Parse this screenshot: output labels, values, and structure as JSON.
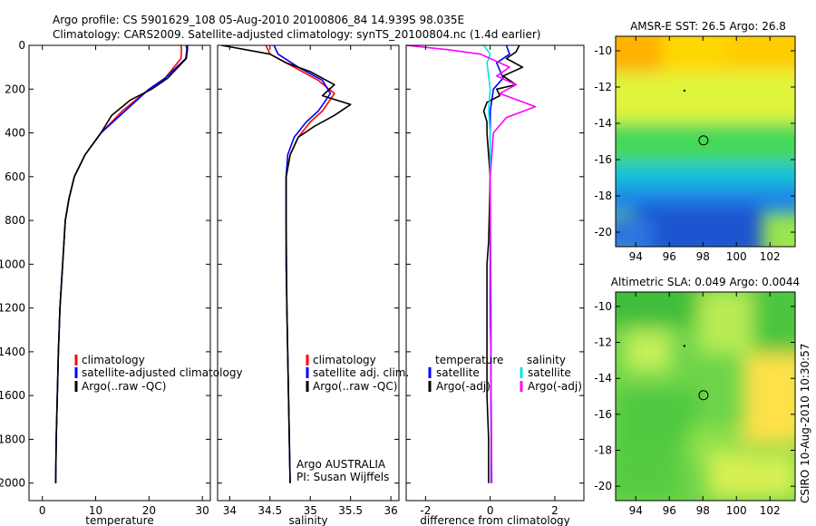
{
  "header": {
    "title_line1": "Argo profile: CS 5901629_108 05-Aug-2010 20100806_84 14.939S 98.035E",
    "title_line2": "Climatology: CARS2009. Satellite-adjusted climatology: synTS_20100804.nc (1.4d earlier)"
  },
  "colors": {
    "climatology": "#ff0000",
    "satellite": "#0000ff",
    "argo": "#000000",
    "sat_sal": "#00e5e5",
    "argo_sal": "#ff00ff"
  },
  "chart_data": [
    {
      "type": "line",
      "name": "temperature-profile",
      "xlabel": "temperature",
      "xticks": [
        0,
        10,
        20,
        30
      ],
      "yticks": [
        0,
        200,
        400,
        600,
        800,
        1000,
        1200,
        1400,
        1600,
        1800,
        2000
      ],
      "xlim": [
        -2.5,
        31.5
      ],
      "ylim": [
        2080,
        0
      ],
      "legend": [
        "climatology",
        "satellite-adjusted climatology",
        "Argo(..raw -QC)"
      ],
      "series": [
        {
          "name": "climatology",
          "color": "#ff0000",
          "x": [
            26,
            26.1,
            26,
            23,
            20,
            15,
            11,
            8,
            6,
            5,
            4.3,
            3.8,
            3.3,
            3,
            2.8,
            2.6,
            2.5
          ],
          "y": [
            0,
            20,
            60,
            150,
            200,
            300,
            400,
            500,
            600,
            700,
            800,
            1000,
            1200,
            1400,
            1600,
            1800,
            2000
          ]
        },
        {
          "name": "satellite-adjusted climatology",
          "color": "#0000ff",
          "x": [
            27,
            27.1,
            26.9,
            23,
            20,
            15.5,
            11,
            8,
            6,
            5,
            4.3,
            3.8,
            3.3,
            3,
            2.8,
            2.6,
            2.5
          ],
          "y": [
            0,
            20,
            60,
            150,
            200,
            300,
            400,
            500,
            600,
            700,
            800,
            1000,
            1200,
            1400,
            1600,
            1800,
            2000
          ]
        },
        {
          "name": "Argo(..raw -QC)",
          "color": "#000000",
          "x": [
            27.2,
            27.2,
            27,
            23.5,
            20.5,
            16.5,
            15,
            13,
            11,
            8,
            6,
            5,
            4.3,
            3.8,
            3.3,
            3,
            2.8,
            2.6,
            2.5
          ],
          "y": [
            0,
            20,
            60,
            150,
            200,
            250,
            280,
            320,
            400,
            500,
            600,
            700,
            800,
            1000,
            1200,
            1400,
            1600,
            1800,
            2000
          ]
        }
      ]
    },
    {
      "type": "line",
      "name": "salinity-profile",
      "xlabel": "salinity",
      "xticks": [
        34,
        34.5,
        35,
        35.5,
        36
      ],
      "xlim": [
        33.85,
        36.1
      ],
      "ylim": [
        2080,
        0
      ],
      "legend": [
        "climatology",
        "satellite adj. clim.",
        "Argo(..raw -QC)"
      ],
      "annotations": [
        "Argo AUSTRALIA",
        "PI: Susan Wijffels"
      ],
      "series": [
        {
          "name": "climatology",
          "color": "#ff0000",
          "x": [
            34.45,
            34.5,
            34.8,
            35.1,
            35.3,
            35.15,
            35,
            34.85,
            34.75,
            34.7,
            34.7,
            34.7,
            34.71,
            34.72,
            34.73,
            34.74,
            34.75
          ],
          "y": [
            0,
            40,
            100,
            160,
            220,
            300,
            350,
            420,
            500,
            600,
            800,
            1000,
            1200,
            1400,
            1600,
            1800,
            2000
          ]
        },
        {
          "name": "satellite adj. clim.",
          "color": "#0000ff",
          "x": [
            34.55,
            34.6,
            34.85,
            35.15,
            35.25,
            35.1,
            34.95,
            34.8,
            34.72,
            34.7,
            34.7,
            34.7,
            34.71,
            34.72,
            34.73,
            34.74,
            34.75
          ],
          "y": [
            0,
            40,
            100,
            160,
            220,
            300,
            350,
            420,
            500,
            600,
            800,
            1000,
            1200,
            1400,
            1600,
            1800,
            2000
          ]
        },
        {
          "name": "Argo(..raw -QC)",
          "color": "#000000",
          "x": [
            33.9,
            34.2,
            34.5,
            34.7,
            35,
            35.3,
            35.15,
            35.5,
            35.3,
            35.05,
            34.85,
            34.75,
            34.7,
            34.7,
            34.71,
            34.72,
            34.73,
            34.74,
            34.75
          ],
          "y": [
            0,
            20,
            40,
            80,
            120,
            180,
            230,
            270,
            320,
            370,
            420,
            500,
            600,
            800,
            1200,
            1400,
            1600,
            1800,
            2000
          ]
        }
      ]
    },
    {
      "type": "line",
      "name": "difference-profile",
      "xlabel": "difference from climatology",
      "xticks": [
        -2,
        0,
        2
      ],
      "xlim": [
        -2.6,
        2.9
      ],
      "ylim": [
        2080,
        0
      ],
      "legend_headers": [
        "temperature",
        "salinity"
      ],
      "legend": [
        "satellite",
        "Argo(-adj)",
        "satellite",
        "Argo(-adj)"
      ],
      "series": [
        {
          "name": "temperature satellite",
          "color": "#0000ff",
          "x": [
            0.5,
            0.6,
            0.2,
            0.4,
            0.1,
            0,
            0,
            0,
            0,
            0,
            0,
            0.02,
            0.02,
            0.03,
            0.03
          ],
          "y": [
            0,
            40,
            80,
            150,
            200,
            300,
            400,
            600,
            800,
            1000,
            1200,
            1400,
            1600,
            1800,
            2000
          ]
        },
        {
          "name": "temperature Argo(-adj)",
          "color": "#000000",
          "x": [
            0.9,
            0.8,
            0.5,
            1,
            0.4,
            0.8,
            0.2,
            0.3,
            -0.1,
            -0.2,
            -0.1,
            -0.1,
            0,
            -0.05,
            -0.1,
            -0.1,
            -0.1,
            -0.05,
            -0.05
          ],
          "y": [
            0,
            30,
            60,
            100,
            140,
            180,
            200,
            230,
            260,
            300,
            350,
            400,
            600,
            900,
            1000,
            1400,
            1600,
            1800,
            2000
          ]
        },
        {
          "name": "salinity satellite",
          "color": "#00e5e5",
          "x": [
            -0.2,
            0,
            -0.1,
            0,
            -0.05,
            0,
            0,
            0.03,
            0.03,
            0.05
          ],
          "y": [
            0,
            40,
            80,
            200,
            300,
            400,
            800,
            1200,
            1600,
            2000
          ]
        },
        {
          "name": "salinity Argo(-adj)",
          "color": "#ff00ff",
          "x": [
            -2.6,
            -1.3,
            -0.3,
            0.6,
            0.2,
            0.8,
            0.3,
            1.4,
            0.5,
            0.1,
            0,
            0.02,
            0.03,
            0.05
          ],
          "y": [
            0,
            20,
            40,
            100,
            140,
            180,
            220,
            280,
            330,
            400,
            600,
            1200,
            1600,
            2000
          ]
        }
      ]
    },
    {
      "type": "heatmap",
      "name": "sst-map",
      "title": "AMSR-E SST: 26.5 Argo: 26.8",
      "xticks": [
        94,
        96,
        98,
        100,
        102
      ],
      "yticks": [
        -10,
        -12,
        -14,
        -16,
        -18,
        -20
      ],
      "xlim": [
        92.8,
        103.5
      ],
      "ylim": [
        -20.8,
        -9.2
      ],
      "argo_position": {
        "lon": 98.035,
        "lat": -14.939
      }
    },
    {
      "type": "heatmap",
      "name": "sla-map",
      "title": "Altimetric SLA: 0.049 Argo: 0.0044",
      "xticks": [
        94,
        96,
        98,
        100,
        102
      ],
      "yticks": [
        -10,
        -12,
        -14,
        -16,
        -18,
        -20
      ],
      "xlim": [
        92.8,
        103.5
      ],
      "ylim": [
        -20.8,
        -9.2
      ],
      "argo_position": {
        "lon": 98.035,
        "lat": -14.939
      }
    }
  ],
  "footer": {
    "credit": "CSIRO 10-Aug-2010 10:30:57"
  }
}
